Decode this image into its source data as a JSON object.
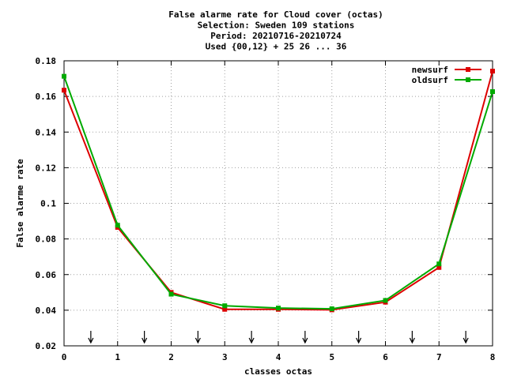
{
  "chart_data": {
    "type": "line",
    "title_lines": [
      "False alarme rate  for Cloud cover (octas)",
      "Selection: Sweden    109 stations",
      "Period: 20210716-20210724",
      "Used {00,12} + 25 26 ... 36"
    ],
    "xlabel": "classes octas",
    "ylabel": "False alarme rate",
    "xlim": [
      0,
      8
    ],
    "ylim": [
      0.02,
      0.18
    ],
    "x_ticks": [
      "0",
      "1",
      "2",
      "3",
      "4",
      "5",
      "6",
      "7",
      "8"
    ],
    "y_ticks": [
      "0.02",
      "0.04",
      "0.06",
      "0.08",
      "0.1",
      "0.12",
      "0.14",
      "0.16",
      "0.18"
    ],
    "grid": true,
    "legend_position": "top-right",
    "x": [
      0,
      1,
      2,
      3,
      4,
      5,
      6,
      7,
      8
    ],
    "series": [
      {
        "name": "newsurf",
        "color": "#dd0000",
        "values": [
          0.1635,
          0.0865,
          0.05,
          0.0405,
          0.0405,
          0.0402,
          0.0445,
          0.064,
          0.1742
        ]
      },
      {
        "name": "oldsurf",
        "color": "#00aa00",
        "values": [
          0.1713,
          0.0877,
          0.049,
          0.0425,
          0.0412,
          0.0408,
          0.0455,
          0.066,
          0.1627
        ]
      }
    ],
    "arrow_markers_x": [
      0.5,
      1.5,
      2.5,
      3.5,
      4.5,
      5.5,
      6.5,
      7.5
    ]
  }
}
